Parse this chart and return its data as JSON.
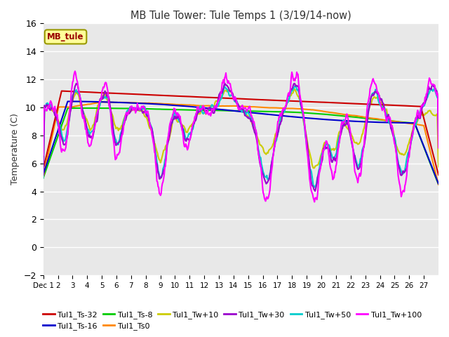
{
  "title": "MB Tule Tower: Tule Temps 1 (3/19/14-now)",
  "ylabel": "Temperature (C)",
  "xlim": [
    0,
    27
  ],
  "ylim": [
    -2,
    16
  ],
  "yticks": [
    -2,
    0,
    2,
    4,
    6,
    8,
    10,
    12,
    14,
    16
  ],
  "series_colors": {
    "Tul1_Ts-32": "#cc0000",
    "Tul1_Ts-16": "#0000cc",
    "Tul1_Ts-8": "#00cc00",
    "Tul1_Ts0": "#ff8800",
    "Tul1_Tw+10": "#cccc00",
    "Tul1_Tw+30": "#9900cc",
    "Tul1_Tw+50": "#00cccc",
    "Tul1_Tw+100": "#ff00ff"
  },
  "legend_box_color": "#ffff99",
  "legend_box_text": "MB_tule",
  "legend_box_text_color": "#990000",
  "bg_color": "#e8e8e8",
  "grid_color": "#ffffff",
  "fig_width": 6.4,
  "fig_height": 4.8,
  "dpi": 100
}
